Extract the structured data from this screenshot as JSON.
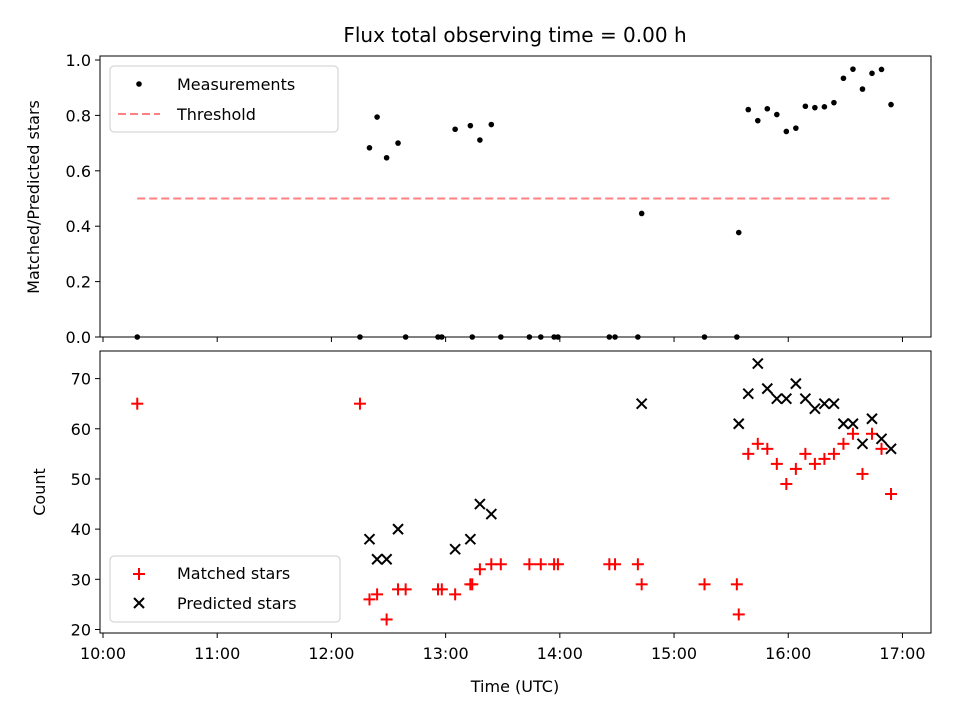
{
  "chart_data": [
    {
      "type": "scatter",
      "title": "Flux total observing time = 0.00 h",
      "xlabel": "",
      "ylabel": "Matched/Predicted stars",
      "xlim": [
        "10:00",
        "17:15"
      ],
      "ylim": [
        0,
        1.0
      ],
      "yticks": [
        "0.0",
        "0.2",
        "0.4",
        "0.6",
        "0.8",
        "1.0"
      ],
      "legend_position": "top-left",
      "series": [
        {
          "name": "Measurements",
          "color": "#000000",
          "marker": "dot",
          "points": [
            {
              "x": "10:18",
              "y": 0.0
            },
            {
              "x": "12:15",
              "y": 0.0
            },
            {
              "x": "12:20",
              "y": 0.683
            },
            {
              "x": "12:24",
              "y": 0.794
            },
            {
              "x": "12:29",
              "y": 0.647
            },
            {
              "x": "12:35",
              "y": 0.7
            },
            {
              "x": "12:39",
              "y": 0.0
            },
            {
              "x": "12:56",
              "y": 0.0
            },
            {
              "x": "12:58",
              "y": 0.0
            },
            {
              "x": "13:05",
              "y": 0.75
            },
            {
              "x": "13:13",
              "y": 0.763
            },
            {
              "x": "13:14",
              "y": 0.0
            },
            {
              "x": "13:18",
              "y": 0.711
            },
            {
              "x": "13:24",
              "y": 0.767
            },
            {
              "x": "13:29",
              "y": 0.0
            },
            {
              "x": "13:44",
              "y": 0.0
            },
            {
              "x": "13:50",
              "y": 0.0
            },
            {
              "x": "13:57",
              "y": 0.0
            },
            {
              "x": "13:59",
              "y": 0.0
            },
            {
              "x": "14:26",
              "y": 0.0
            },
            {
              "x": "14:29",
              "y": 0.0
            },
            {
              "x": "14:41",
              "y": 0.0
            },
            {
              "x": "14:43",
              "y": 0.446
            },
            {
              "x": "15:16",
              "y": 0.0
            },
            {
              "x": "15:33",
              "y": 0.0
            },
            {
              "x": "15:34",
              "y": 0.377
            },
            {
              "x": "15:39",
              "y": 0.821
            },
            {
              "x": "15:44",
              "y": 0.781
            },
            {
              "x": "15:49",
              "y": 0.824
            },
            {
              "x": "15:54",
              "y": 0.803
            },
            {
              "x": "15:59",
              "y": 0.742
            },
            {
              "x": "16:04",
              "y": 0.754
            },
            {
              "x": "16:09",
              "y": 0.833
            },
            {
              "x": "16:14",
              "y": 0.828
            },
            {
              "x": "16:19",
              "y": 0.831
            },
            {
              "x": "16:24",
              "y": 0.846
            },
            {
              "x": "16:29",
              "y": 0.934
            },
            {
              "x": "16:34",
              "y": 0.967
            },
            {
              "x": "16:39",
              "y": 0.895
            },
            {
              "x": "16:44",
              "y": 0.952
            },
            {
              "x": "16:49",
              "y": 0.966
            },
            {
              "x": "16:54",
              "y": 0.839
            }
          ]
        },
        {
          "name": "Threshold",
          "color": "#ff8080",
          "style": "dashed",
          "x": [
            "10:18",
            "16:54"
          ],
          "y": [
            0.5,
            0.5
          ]
        }
      ]
    },
    {
      "type": "scatter",
      "title": "",
      "xlabel": "Time (UTC)",
      "ylabel": "Count",
      "xlim": [
        "10:00",
        "17:15"
      ],
      "ylim": [
        19.3,
        75.5
      ],
      "yticks": [
        "20",
        "30",
        "40",
        "50",
        "60",
        "70"
      ],
      "xticks": [
        "10:00",
        "11:00",
        "12:00",
        "13:00",
        "14:00",
        "15:00",
        "16:00",
        "17:00"
      ],
      "legend_position": "bottom-left",
      "series": [
        {
          "name": "Matched stars",
          "color": "#ff0000",
          "marker": "plus",
          "points": [
            {
              "x": "10:18",
              "y": 65
            },
            {
              "x": "12:15",
              "y": 65
            },
            {
              "x": "12:20",
              "y": 26
            },
            {
              "x": "12:24",
              "y": 27
            },
            {
              "x": "12:29",
              "y": 22
            },
            {
              "x": "12:35",
              "y": 28
            },
            {
              "x": "12:39",
              "y": 28
            },
            {
              "x": "12:56",
              "y": 28
            },
            {
              "x": "12:58",
              "y": 28
            },
            {
              "x": "13:05",
              "y": 27
            },
            {
              "x": "13:13",
              "y": 29
            },
            {
              "x": "13:14",
              "y": 29
            },
            {
              "x": "13:18",
              "y": 32
            },
            {
              "x": "13:24",
              "y": 33
            },
            {
              "x": "13:29",
              "y": 33
            },
            {
              "x": "13:44",
              "y": 33
            },
            {
              "x": "13:50",
              "y": 33
            },
            {
              "x": "13:57",
              "y": 33
            },
            {
              "x": "13:59",
              "y": 33
            },
            {
              "x": "14:26",
              "y": 33
            },
            {
              "x": "14:29",
              "y": 33
            },
            {
              "x": "14:41",
              "y": 33
            },
            {
              "x": "14:43",
              "y": 29
            },
            {
              "x": "15:16",
              "y": 29
            },
            {
              "x": "15:33",
              "y": 29
            },
            {
              "x": "15:34",
              "y": 23
            },
            {
              "x": "15:39",
              "y": 55
            },
            {
              "x": "15:44",
              "y": 57
            },
            {
              "x": "15:49",
              "y": 56
            },
            {
              "x": "15:54",
              "y": 53
            },
            {
              "x": "15:59",
              "y": 49
            },
            {
              "x": "16:04",
              "y": 52
            },
            {
              "x": "16:09",
              "y": 55
            },
            {
              "x": "16:14",
              "y": 53
            },
            {
              "x": "16:19",
              "y": 54
            },
            {
              "x": "16:24",
              "y": 55
            },
            {
              "x": "16:29",
              "y": 57
            },
            {
              "x": "16:34",
              "y": 59
            },
            {
              "x": "16:39",
              "y": 51
            },
            {
              "x": "16:44",
              "y": 59
            },
            {
              "x": "16:49",
              "y": 56
            },
            {
              "x": "16:54",
              "y": 47
            }
          ]
        },
        {
          "name": "Predicted stars",
          "color": "#000000",
          "marker": "x",
          "points": [
            {
              "x": "12:20",
              "y": 38
            },
            {
              "x": "12:24",
              "y": 34
            },
            {
              "x": "12:29",
              "y": 34
            },
            {
              "x": "12:35",
              "y": 40
            },
            {
              "x": "13:05",
              "y": 36
            },
            {
              "x": "13:13",
              "y": 38
            },
            {
              "x": "13:18",
              "y": 45
            },
            {
              "x": "13:24",
              "y": 43
            },
            {
              "x": "14:43",
              "y": 65
            },
            {
              "x": "15:34",
              "y": 61
            },
            {
              "x": "15:39",
              "y": 67
            },
            {
              "x": "15:44",
              "y": 73
            },
            {
              "x": "15:49",
              "y": 68
            },
            {
              "x": "15:54",
              "y": 66
            },
            {
              "x": "15:59",
              "y": 66
            },
            {
              "x": "16:04",
              "y": 69
            },
            {
              "x": "16:09",
              "y": 66
            },
            {
              "x": "16:14",
              "y": 64
            },
            {
              "x": "16:19",
              "y": 65
            },
            {
              "x": "16:24",
              "y": 65
            },
            {
              "x": "16:29",
              "y": 61
            },
            {
              "x": "16:34",
              "y": 61
            },
            {
              "x": "16:39",
              "y": 57
            },
            {
              "x": "16:44",
              "y": 62
            },
            {
              "x": "16:49",
              "y": 58
            },
            {
              "x": "16:54",
              "y": 56
            }
          ]
        }
      ]
    }
  ]
}
